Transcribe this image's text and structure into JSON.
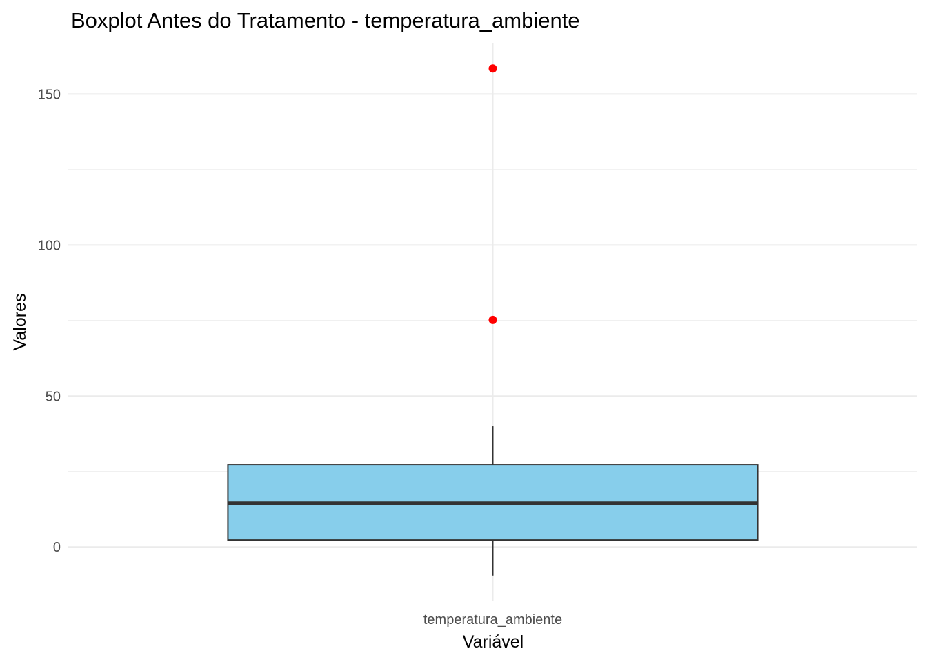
{
  "chart_data": {
    "type": "boxplot",
    "title": "Boxplot Antes do Tratamento - temperatura_ambiente",
    "xlabel": "Variável",
    "ylabel": "Valores",
    "categories": [
      "temperatura_ambiente"
    ],
    "ylim": [
      -18,
      167
    ],
    "y_ticks": [
      0,
      50,
      100,
      150
    ],
    "grid": true,
    "box": {
      "category": "temperatura_ambiente",
      "whisker_low": -9.5,
      "q1": 2.3,
      "median": 14.5,
      "q3": 27.2,
      "whisker_high": 40
    },
    "outliers": [
      75.2,
      158.5
    ],
    "colors": {
      "box_fill": "#87ceeb",
      "box_stroke": "#333333",
      "outlier": "#ff0000",
      "grid": "#ebebeb"
    }
  }
}
